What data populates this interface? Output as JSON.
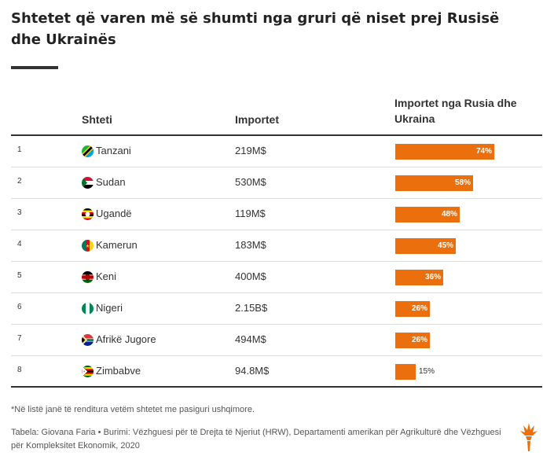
{
  "title": "Shtetet që varen më së shumti nga gruri që niset prej Rusisë dhe Ukrainës",
  "headers": {
    "country": "Shteti",
    "imports": "Importet",
    "share": "Importet nga Rusia dhe Ukraina"
  },
  "chart_data": {
    "type": "table",
    "columns": [
      "",
      "Shteti",
      "Importet",
      "Importet nga Rusia dhe Ukraina"
    ],
    "rows": [
      {
        "rank": "1",
        "country": "Tanzani",
        "imports": "219M$",
        "share": 74,
        "share_label": "74%",
        "flag": "tanzania-flag"
      },
      {
        "rank": "2",
        "country": "Sudan",
        "imports": "530M$",
        "share": 58,
        "share_label": "58%",
        "flag": "sudan-flag"
      },
      {
        "rank": "3",
        "country": "Ugandë",
        "imports": "119M$",
        "share": 48,
        "share_label": "48%",
        "flag": "uganda-flag"
      },
      {
        "rank": "4",
        "country": "Kamerun",
        "imports": "183M$",
        "share": 45,
        "share_label": "45%",
        "flag": "cameroon-flag"
      },
      {
        "rank": "5",
        "country": "Keni",
        "imports": "400M$",
        "share": 36,
        "share_label": "36%",
        "flag": "kenya-flag"
      },
      {
        "rank": "6",
        "country": "Nigeri",
        "imports": "2.15B$",
        "share": 26,
        "share_label": "26%",
        "flag": "nigeria-flag"
      },
      {
        "rank": "7",
        "country": "Afrikë Jugore",
        "imports": "494M$",
        "share": 26,
        "share_label": "26%",
        "flag": "south-africa-flag"
      },
      {
        "rank": "8",
        "country": "Zimbabve",
        "imports": "94.8M$",
        "share": 15,
        "share_label": "15%",
        "flag": "zimbabwe-flag"
      }
    ],
    "bar_color": "#ec6f0d",
    "share_max": 100
  },
  "note": "*Në listë janë të renditura vetëm shtetet me pasiguri ushqimore.",
  "source": "Tabela: Giovana Faria • Burimi: Vëzhguesi për të Drejta të Njeriut (HRW), Departamenti amerikan për Agrikulturë dhe Vëzhguesi për Kompleksitet Ekonomik, 2020",
  "logo_icon": "rferl-torch-logo-icon"
}
